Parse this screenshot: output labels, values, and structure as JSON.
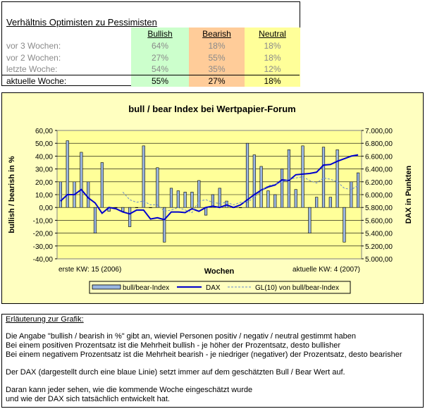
{
  "table": {
    "title": "Verhältnis Optimisten zu Pessimisten",
    "headers": {
      "bullish": "Bullish",
      "bearish": "Bearish",
      "neutral": "Neutral"
    },
    "colors": {
      "bullish": "#ccffcc",
      "bearish": "#ffcc99",
      "neutral": "#ffff99"
    },
    "rows": [
      {
        "label": "vor 3 Wochen:",
        "bullish": "64%",
        "bearish": "18%",
        "neutral": "18%"
      },
      {
        "label": "vor 2 Wochen:",
        "bullish": "27%",
        "bearish": "55%",
        "neutral": "18%"
      },
      {
        "label": "letzte Woche:",
        "bullish": "54%",
        "bearish": "35%",
        "neutral": "12%"
      },
      {
        "label": "aktuelle Woche:",
        "bullish": "55%",
        "bearish": "27%",
        "neutral": "18%"
      }
    ]
  },
  "chart_data": {
    "type": "bar",
    "title": "bull / bear Index bei Wertpapier-Forum",
    "xlabel": "Wochen",
    "ylabel": "bullish / bearish in %",
    "y2label": "DAX in Punkten",
    "ylim": [
      -40,
      60
    ],
    "y2lim": [
      5000,
      7000
    ],
    "yticks": [
      "60,00",
      "50,00",
      "40,00",
      "30,00",
      "20,00",
      "10,00",
      "0,00",
      "-10,00",
      "-20,00",
      "-30,00",
      "-40,00"
    ],
    "y2ticks": [
      "7.000,00",
      "6.800,00",
      "6.600,00",
      "6.400,00",
      "6.200,00",
      "6.000,00",
      "5.800,00",
      "5.600,00",
      "5.400,00",
      "5.200,00",
      "5.000,00"
    ],
    "x_first_label": "erste KW: 15 (2006)",
    "x_last_label": "aktuelle KW: 4 (2007)",
    "grid": true,
    "legend_position": "bottom",
    "series": [
      {
        "name": "bull/bear-Index",
        "kind": "bar",
        "color": "#9ab6e0",
        "values": [
          20,
          52,
          20,
          43,
          20,
          -20,
          35,
          -3,
          0,
          -3,
          -15,
          0,
          48,
          0,
          31,
          -27,
          15,
          13,
          12,
          12,
          21,
          -6,
          10,
          15,
          5,
          0,
          0,
          50,
          41,
          32,
          13,
          10,
          30,
          45,
          14,
          48,
          -20,
          8,
          47,
          8,
          45,
          -27,
          20,
          27
        ]
      },
      {
        "name": "DAX",
        "kind": "line",
        "color": "#0000cc",
        "values": [
          5900,
          6000,
          6000,
          6080,
          5950,
          5870,
          5710,
          5800,
          5780,
          5730,
          5700,
          5760,
          5760,
          5620,
          5640,
          5610,
          5730,
          5730,
          5720,
          5780,
          5740,
          5800,
          5820,
          5800,
          5840,
          5800,
          5840,
          5920,
          6000,
          6070,
          6120,
          6150,
          6230,
          6220,
          6310,
          6320,
          6330,
          6350,
          6460,
          6470,
          6520,
          6560,
          6600,
          6620
        ]
      },
      {
        "name": "GL(10) von bull/bear-Index",
        "kind": "line",
        "color": "#6688cc",
        "values": [
          null,
          null,
          null,
          null,
          null,
          null,
          null,
          null,
          null,
          12,
          6,
          4,
          5,
          2,
          2,
          -3,
          -2,
          0,
          -2,
          -4,
          5,
          6,
          4,
          3,
          4,
          2,
          4,
          4,
          8,
          13,
          17,
          18,
          20,
          22,
          23,
          24,
          21,
          19,
          23,
          22,
          20,
          15,
          14,
          17
        ]
      }
    ]
  },
  "explanation": {
    "title": "Erläuterung zur Grafik:",
    "lines": [
      "Die Angabe \"bullish / bearish in %\" gibt an, wieviel Personen positiv / negativ / neutral gestimmt haben",
      "Bei einem positiven Prozentsatz ist die Mehrheit bullish - je höher der Prozentsatz, desto bullisher",
      "Bei einem negativem Prozentsatz ist die Mehrheit bearish - je niedriger (negativer) der Prozentsatz, desto bearisher",
      "Der DAX (dargestellt durch eine blaue Linie) setzt immer auf dem geschätzten Bull / Bear Wert auf.",
      "Daran kann jeder sehen, wie die kommende Woche eingeschätzt wurde",
      "und wie der DAX sich tatsächlich entwickelt hat."
    ]
  }
}
